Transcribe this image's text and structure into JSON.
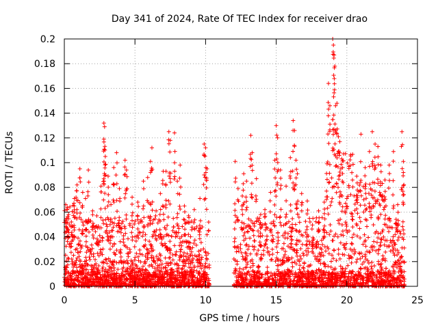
{
  "chart_data": {
    "type": "scatter",
    "title": "Day 341 of 2024, Rate Of TEC Index for receiver drao",
    "xlabel": "GPS time / hours",
    "ylabel": "ROTI / TECUs",
    "xlim": [
      0,
      25
    ],
    "ylim": [
      0,
      0.2
    ],
    "x_ticks": [
      "0",
      "5",
      "10",
      "15",
      "20",
      "25"
    ],
    "y_ticks": [
      "0",
      "0.02",
      "0.04",
      "0.06",
      "0.08",
      "0.1",
      "0.12",
      "0.14",
      "0.16",
      "0.18",
      "0.2"
    ],
    "grid": true,
    "marker": "+",
    "series_color": "#ff0000",
    "data_gap_hours": [
      10.3,
      12.0
    ],
    "series": [
      {
        "points": [
          [
            0.1,
            0.066
          ],
          [
            0.2,
            0.062
          ],
          [
            0.3,
            0.058
          ],
          [
            0.5,
            0.052
          ],
          [
            0.7,
            0.065
          ],
          [
            0.9,
            0.082
          ],
          [
            1.1,
            0.095
          ],
          [
            1.3,
            0.076
          ],
          [
            1.5,
            0.071
          ],
          [
            1.7,
            0.094
          ],
          [
            2.0,
            0.061
          ],
          [
            2.3,
            0.057
          ],
          [
            2.6,
            0.081
          ],
          [
            2.8,
            0.132
          ],
          [
            2.85,
            0.129
          ],
          [
            2.8,
            0.119
          ],
          [
            2.9,
            0.105
          ],
          [
            3.1,
            0.089
          ],
          [
            3.3,
            0.066
          ],
          [
            3.5,
            0.096
          ],
          [
            3.7,
            0.108
          ],
          [
            3.9,
            0.079
          ],
          [
            4.3,
            0.102
          ],
          [
            4.4,
            0.094
          ],
          [
            4.8,
            0.072
          ],
          [
            5.2,
            0.068
          ],
          [
            5.6,
            0.085
          ],
          [
            5.9,
            0.088
          ],
          [
            6.1,
            0.101
          ],
          [
            6.2,
            0.112
          ],
          [
            6.5,
            0.061
          ],
          [
            6.8,
            0.075
          ],
          [
            7.0,
            0.093
          ],
          [
            7.2,
            0.093
          ],
          [
            7.4,
            0.125
          ],
          [
            7.5,
            0.118
          ],
          [
            7.8,
            0.124
          ],
          [
            8.0,
            0.085
          ],
          [
            8.2,
            0.098
          ],
          [
            8.5,
            0.065
          ],
          [
            8.8,
            0.057
          ],
          [
            9.2,
            0.062
          ],
          [
            9.6,
            0.071
          ],
          [
            9.9,
            0.115
          ],
          [
            10.0,
            0.112
          ],
          [
            10.1,
            0.095
          ],
          [
            12.1,
            0.101
          ],
          [
            12.3,
            0.079
          ],
          [
            12.6,
            0.073
          ],
          [
            12.7,
            0.091
          ],
          [
            12.9,
            0.085
          ],
          [
            13.2,
            0.122
          ],
          [
            13.3,
            0.108
          ],
          [
            13.6,
            0.087
          ],
          [
            13.9,
            0.058
          ],
          [
            14.2,
            0.062
          ],
          [
            14.6,
            0.076
          ],
          [
            14.9,
            0.102
          ],
          [
            15.0,
            0.13
          ],
          [
            15.1,
            0.12
          ],
          [
            15.3,
            0.094
          ],
          [
            15.7,
            0.081
          ],
          [
            16.0,
            0.104
          ],
          [
            16.2,
            0.134
          ],
          [
            16.3,
            0.126
          ],
          [
            16.4,
            0.102
          ],
          [
            16.5,
            0.091
          ],
          [
            16.8,
            0.075
          ],
          [
            17.2,
            0.069
          ],
          [
            17.6,
            0.055
          ],
          [
            18.0,
            0.061
          ],
          [
            18.4,
            0.068
          ],
          [
            18.6,
            0.099
          ],
          [
            18.7,
            0.164
          ],
          [
            18.8,
            0.146
          ],
          [
            19.0,
            0.2
          ],
          [
            19.05,
            0.195
          ],
          [
            19.1,
            0.187
          ],
          [
            19.15,
            0.178
          ],
          [
            19.2,
            0.146
          ],
          [
            19.3,
            0.148
          ],
          [
            19.4,
            0.121
          ],
          [
            19.5,
            0.117
          ],
          [
            19.7,
            0.096
          ],
          [
            20.0,
            0.071
          ],
          [
            20.4,
            0.086
          ],
          [
            20.7,
            0.089
          ],
          [
            21.0,
            0.123
          ],
          [
            21.3,
            0.096
          ],
          [
            21.6,
            0.109
          ],
          [
            21.8,
            0.125
          ],
          [
            22.0,
            0.115
          ],
          [
            22.2,
            0.113
          ],
          [
            22.4,
            0.098
          ],
          [
            22.7,
            0.086
          ],
          [
            23.0,
            0.098
          ],
          [
            23.3,
            0.109
          ],
          [
            23.6,
            0.066
          ],
          [
            23.9,
            0.125
          ],
          [
            24.0,
            0.101
          ],
          [
            24.0,
            0.092
          ]
        ]
      }
    ]
  }
}
